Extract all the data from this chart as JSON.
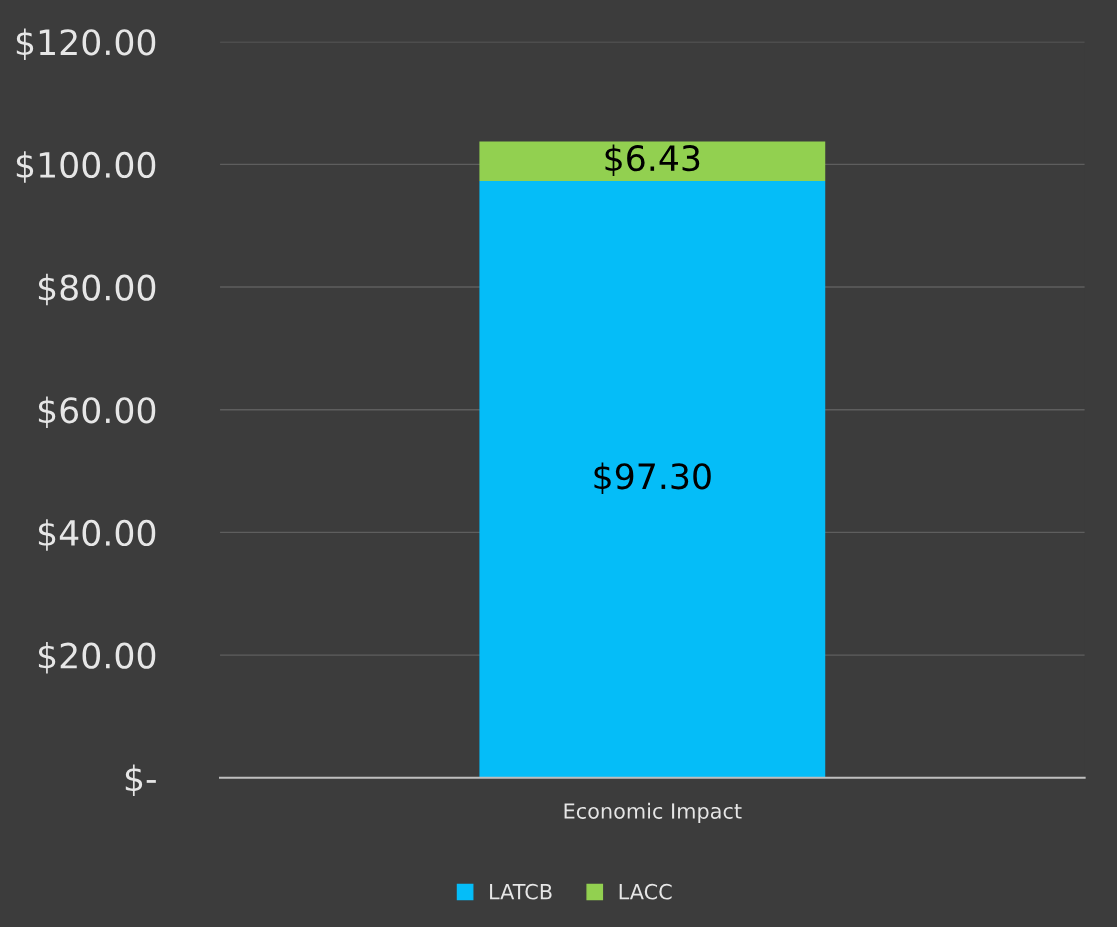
{
  "chart_data": {
    "type": "bar",
    "stacked": true,
    "categories": [
      "Economic Impact"
    ],
    "series": [
      {
        "name": "LATCB",
        "color": "#05bdf8",
        "values": [
          97.3
        ],
        "value_labels": [
          "$97.30"
        ]
      },
      {
        "name": "LACC",
        "color": "#92d050",
        "values": [
          6.43
        ],
        "value_labels": [
          "$6.43"
        ]
      }
    ],
    "ylim": [
      0,
      120
    ],
    "yticks": [
      {
        "value": 0,
        "label": "$-"
      },
      {
        "value": 20,
        "label": "$20.00"
      },
      {
        "value": 40,
        "label": "$40.00"
      },
      {
        "value": 60,
        "label": "$60.00"
      },
      {
        "value": 80,
        "label": "$80.00"
      },
      {
        "value": 100,
        "label": "$100.00"
      },
      {
        "value": 120,
        "label": "$120.00"
      }
    ],
    "grid": "y",
    "legend": "bottom"
  }
}
